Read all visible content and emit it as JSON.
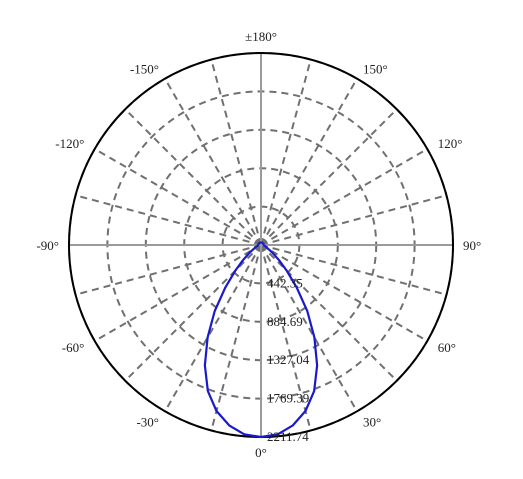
{
  "chart_data": {
    "type": "polar",
    "title": "",
    "angle_labels": [
      {
        "angle": 0,
        "text": "0°"
      },
      {
        "angle": 30,
        "text": "30°"
      },
      {
        "angle": 60,
        "text": "60°"
      },
      {
        "angle": 90,
        "text": "90°"
      },
      {
        "angle": 120,
        "text": "120°"
      },
      {
        "angle": 150,
        "text": "150°"
      },
      {
        "angle": 180,
        "text": "±180°"
      },
      {
        "angle": -150,
        "text": "-150°"
      },
      {
        "angle": -120,
        "text": "-120°"
      },
      {
        "angle": -90,
        "text": "-90°"
      },
      {
        "angle": -60,
        "text": "-60°"
      },
      {
        "angle": -30,
        "text": "-30°"
      }
    ],
    "radial_ticks": [
      442.35,
      884.69,
      1327.04,
      1769.39,
      2211.74
    ],
    "radial_tick_labels": [
      "442.35",
      "884.69",
      "1327.04",
      "1769.39",
      "2211.74"
    ],
    "r_max": 2211.74,
    "angle_step_deg": 15,
    "grid": true,
    "series": [
      {
        "color": "#1a1acc",
        "points": [
          [
            0,
            2211.74
          ],
          [
            5,
            2190
          ],
          [
            10,
            2110
          ],
          [
            15,
            1980
          ],
          [
            20,
            1790
          ],
          [
            25,
            1530
          ],
          [
            30,
            1230
          ],
          [
            35,
            930
          ],
          [
            40,
            640
          ],
          [
            45,
            420
          ],
          [
            50,
            270
          ],
          [
            55,
            170
          ],
          [
            60,
            110
          ],
          [
            70,
            60
          ],
          [
            80,
            40
          ],
          [
            90,
            32
          ],
          [
            120,
            30
          ],
          [
            150,
            30
          ],
          [
            180,
            30
          ],
          [
            -150,
            30
          ],
          [
            -120,
            30
          ],
          [
            -90,
            32
          ],
          [
            -80,
            40
          ],
          [
            -70,
            60
          ],
          [
            -60,
            110
          ],
          [
            -55,
            170
          ],
          [
            -50,
            270
          ],
          [
            -45,
            420
          ],
          [
            -40,
            640
          ],
          [
            -35,
            930
          ],
          [
            -30,
            1230
          ],
          [
            -25,
            1530
          ],
          [
            -20,
            1790
          ],
          [
            -15,
            1980
          ],
          [
            -10,
            2110
          ],
          [
            -5,
            2190
          ],
          [
            0,
            2211.74
          ]
        ]
      }
    ]
  }
}
